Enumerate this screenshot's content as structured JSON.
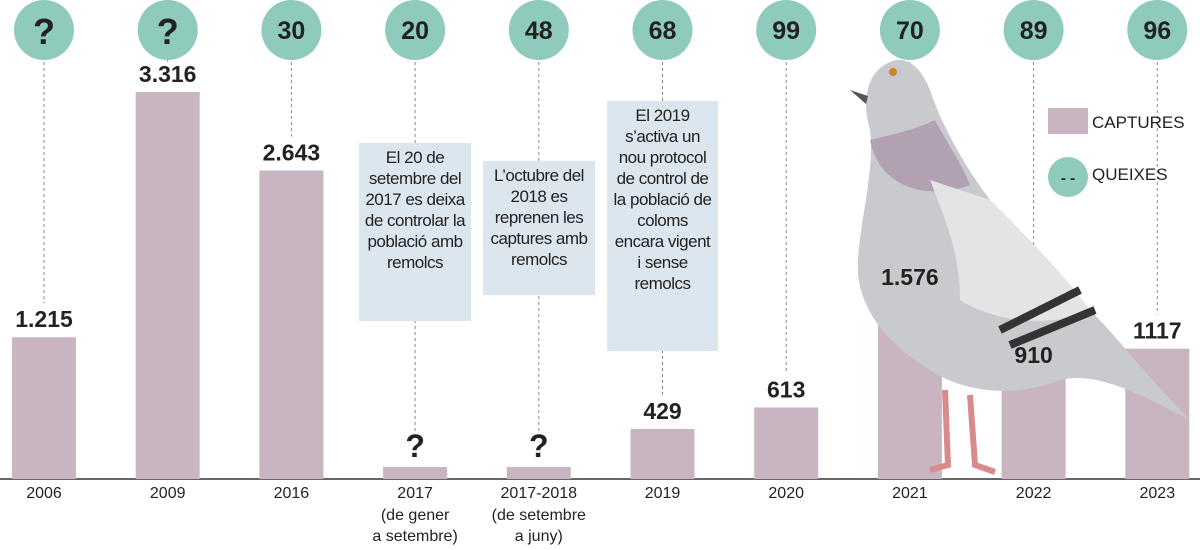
{
  "chart_data": {
    "type": "bar",
    "categories": [
      "2006",
      "2009",
      "2016",
      "2017",
      "2017-2018",
      "2019",
      "2020",
      "2021",
      "2022",
      "2023"
    ],
    "category_sublabels": [
      "",
      "",
      "",
      "(de gener a setembre)",
      "(de setembre a juny)",
      "",
      "",
      "",
      "",
      ""
    ],
    "series": [
      {
        "name": "CAPTURES",
        "values": [
          1215,
          3316,
          2643,
          null,
          null,
          429,
          613,
          1576,
          910,
          1117
        ],
        "value_labels": [
          "1.215",
          "3.316",
          "2.643",
          "?",
          "?",
          "429",
          "613",
          "1.576",
          "910",
          "1117"
        ]
      },
      {
        "name": "QUEIXES",
        "values": [
          null,
          null,
          30,
          20,
          48,
          68,
          99,
          70,
          89,
          96
        ],
        "value_labels": [
          "?",
          "?",
          "30",
          "20",
          "48",
          "68",
          "99",
          "70",
          "89",
          "96"
        ]
      }
    ],
    "legend": {
      "position": "right",
      "items": [
        "CAPTURES",
        "QUEIXES"
      ],
      "queixes_marker": "- -"
    },
    "annotations": [
      "El 20 de setembre del 2017 es deixa de controlar la població amb remolcs",
      "L’octubre del 2018 es reprenen les captures amb remolcs",
      "El 2019 s’activa un nou protocol de control de la població de coloms encara vigent i sense remolcs"
    ],
    "colors": {
      "captures": "#c9b5c2",
      "queixes": "#8fcbbd",
      "annotation_bg": "#dce6ee",
      "text": "#222222"
    }
  }
}
